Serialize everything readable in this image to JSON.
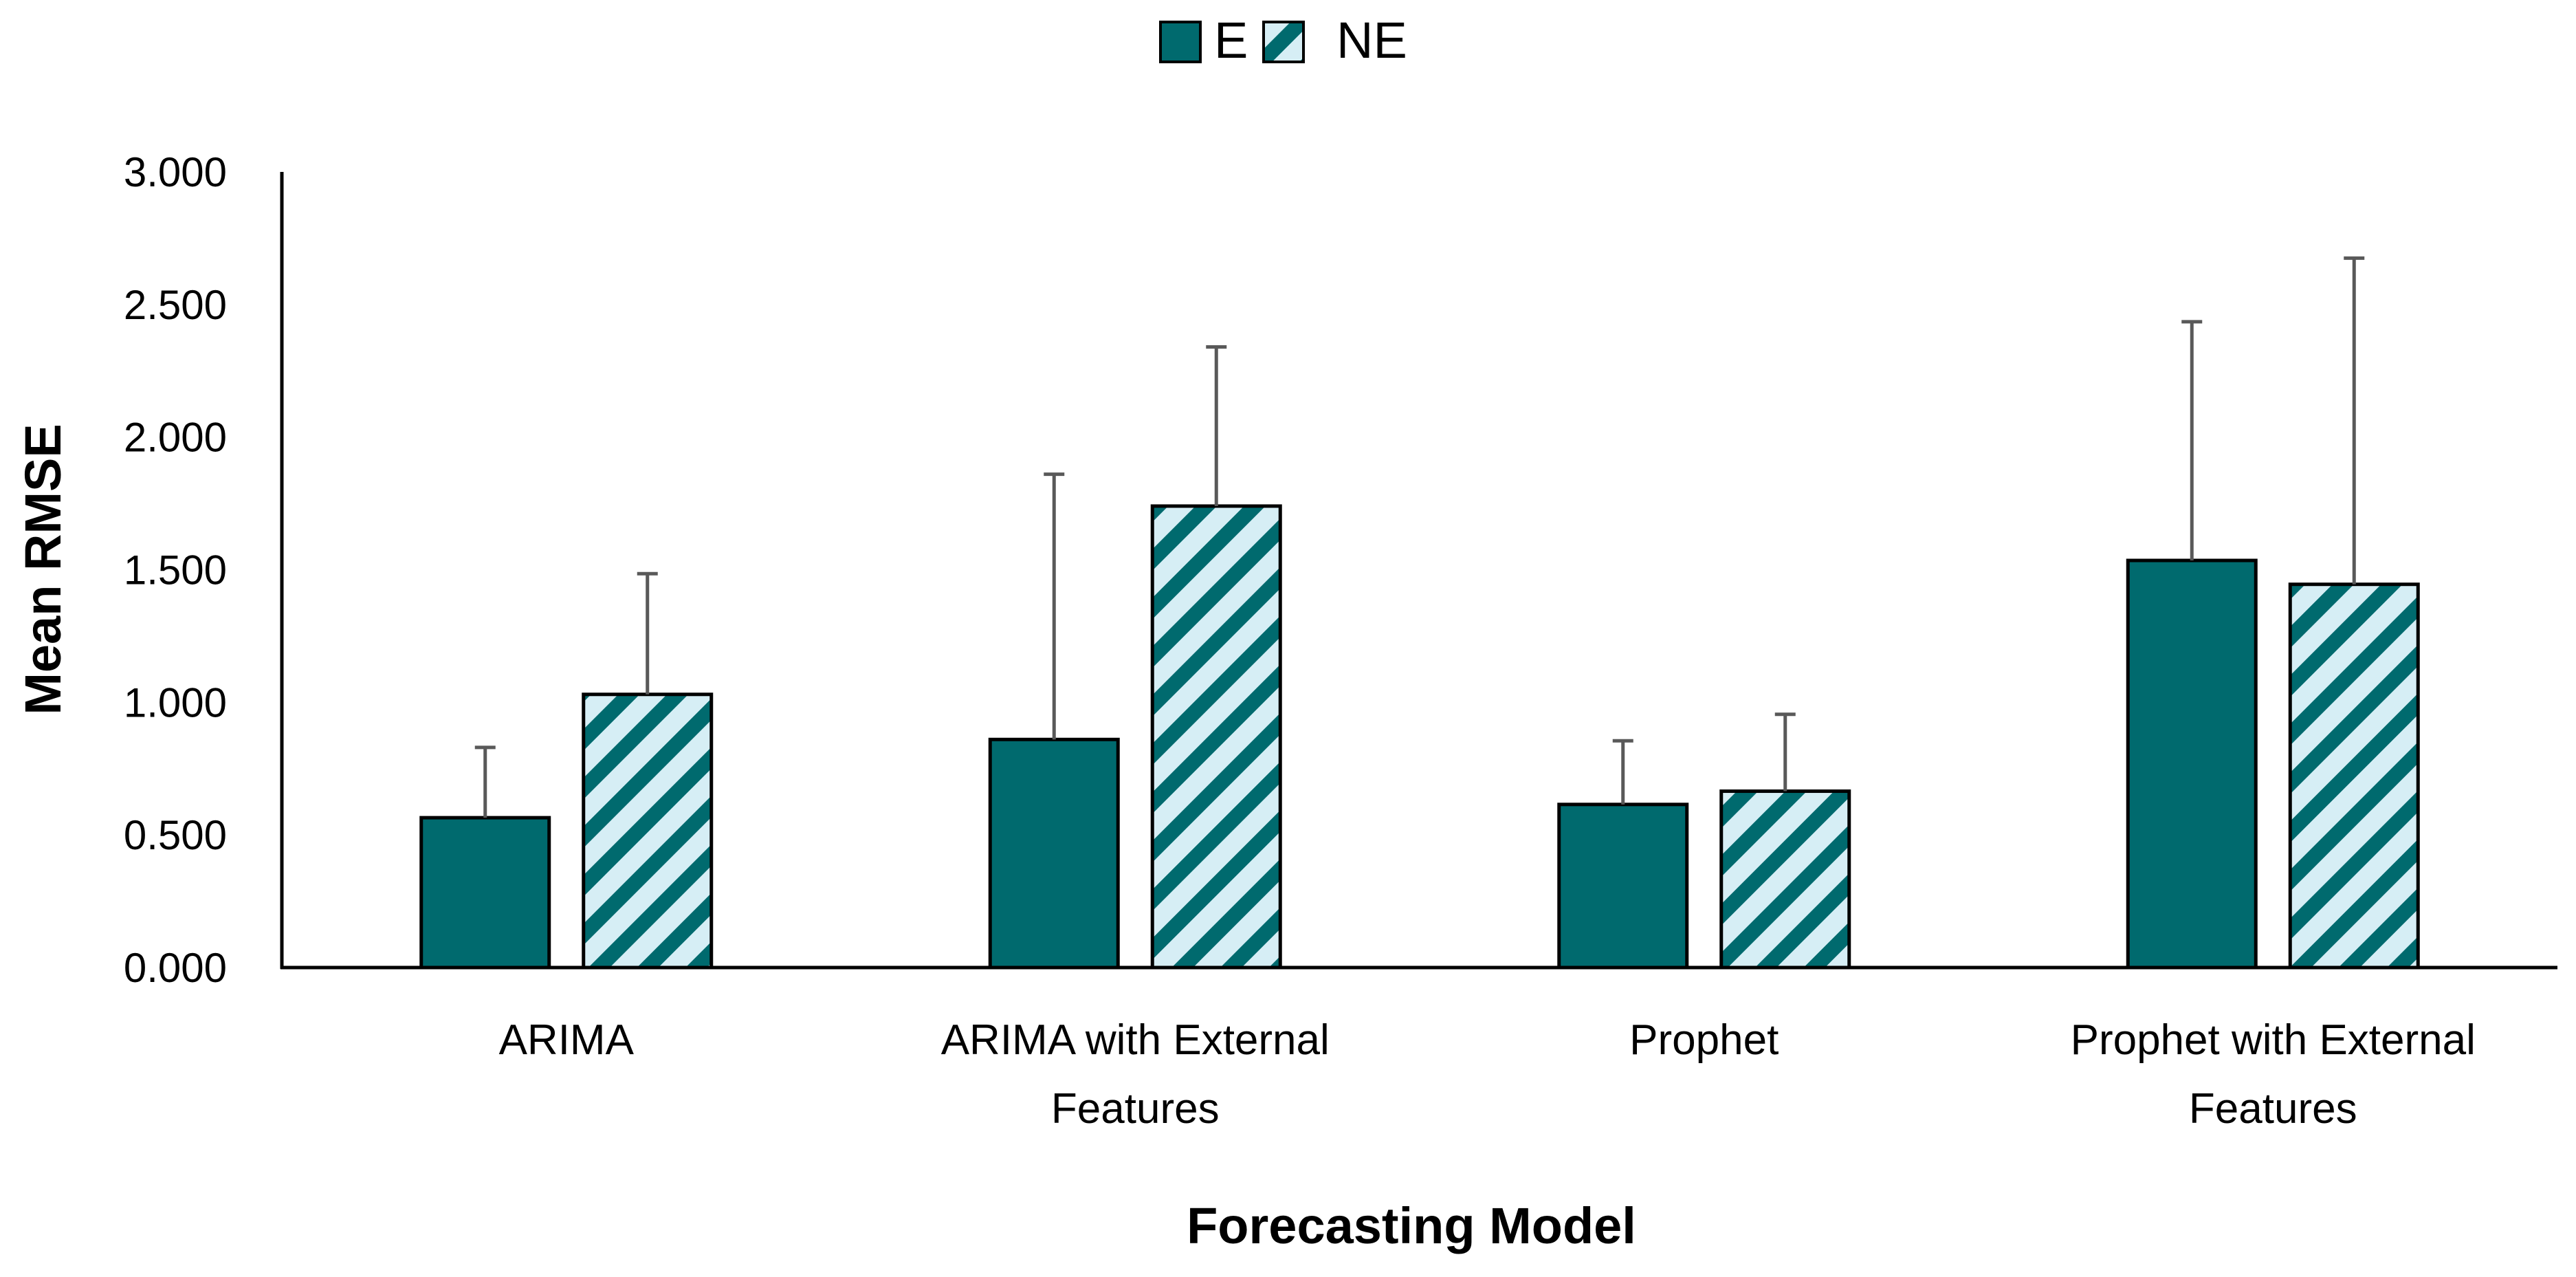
{
  "colors": {
    "E": "#006A6E",
    "NE_stripe": "#006A6E",
    "NE_background": "#D6EEF5",
    "axis": "#000000",
    "error_bar": "#595959"
  },
  "chart_data": {
    "type": "bar",
    "title": "",
    "xlabel": "Forecasting Model",
    "ylabel": "Mean RMSE",
    "ylim": [
      0,
      3
    ],
    "yticks": [
      "0.000",
      "0.500",
      "1.000",
      "1.500",
      "2.000",
      "2.500",
      "3.000"
    ],
    "ytick_values": [
      0,
      0.5,
      1,
      1.5,
      2,
      2.5,
      3
    ],
    "grid": false,
    "legend_position": "top-center",
    "categories": [
      [
        "ARIMA"
      ],
      [
        "ARIMA with External",
        "Features"
      ],
      [
        "Prophet"
      ],
      [
        "Prophet with External",
        "Features"
      ]
    ],
    "series": [
      {
        "name": "E",
        "pattern": "solid",
        "values": [
          0.565,
          0.86,
          0.615,
          1.535
        ],
        "error_upper": [
          0.265,
          1.0,
          0.24,
          0.9
        ]
      },
      {
        "name": "NE",
        "pattern": "diagonal-stripes",
        "values": [
          1.03,
          1.74,
          0.665,
          1.445
        ],
        "error_upper": [
          0.455,
          0.6,
          0.29,
          1.23
        ]
      }
    ]
  }
}
